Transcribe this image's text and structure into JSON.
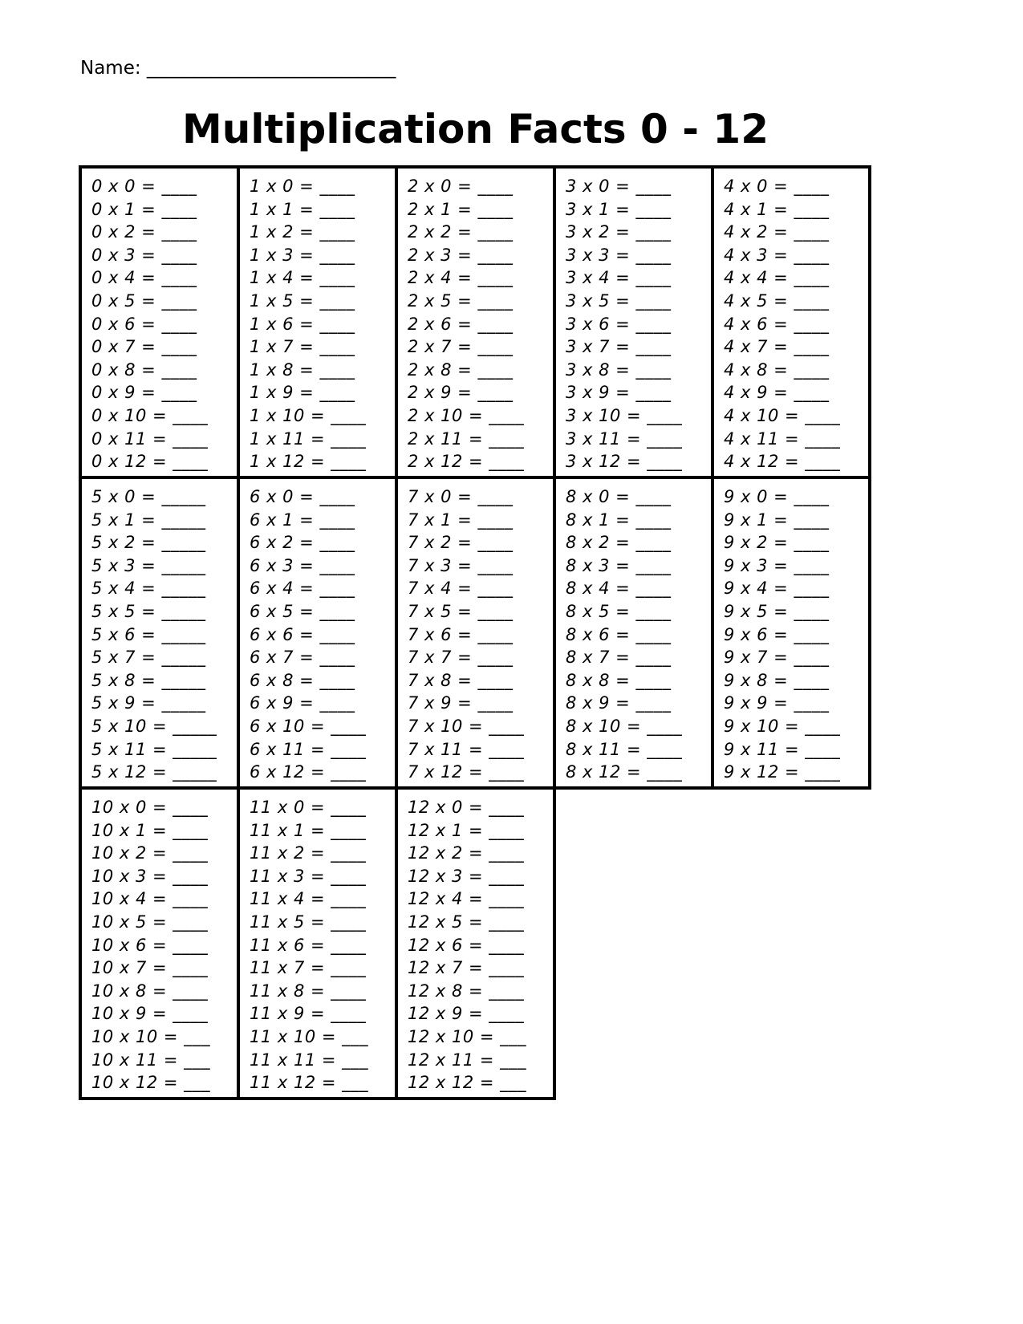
{
  "name_label": "Name: ___________________________",
  "title": "Multiplication Facts 0 - 12",
  "blocks": [
    {
      "problems": [
        "0 x 0 = ____",
        "0 x 1 = ____",
        "0 x 2 = ____",
        "0 x 3 = ____",
        "0 x 4 = ____",
        "0 x 5 = ____",
        "0 x 6 = ____",
        "0 x 7 = ____",
        "0 x 8 = ____",
        "0 x 9 = ____",
        "0 x 10 = ____",
        "0 x 11 = ____",
        "0 x 12 = ____"
      ]
    },
    {
      "problems": [
        "1 x 0 = ____",
        "1 x 1 = ____",
        "1 x 2 = ____",
        "1 x 3 = ____",
        "1 x 4 = ____",
        "1 x 5 = ____",
        "1 x 6 = ____",
        "1 x 7 = ____",
        "1 x 8 = ____",
        "1 x 9 = ____",
        "1 x 10 = ____",
        "1 x 11 = ____",
        "1 x 12 = ____"
      ]
    },
    {
      "problems": [
        "2 x 0 = ____",
        "2 x 1 = ____",
        "2 x 2 = ____",
        "2 x 3 = ____",
        "2 x 4 = ____",
        "2 x 5 = ____",
        "2 x 6 = ____",
        "2 x 7 = ____",
        "2 x 8 = ____",
        "2 x 9 = ____",
        "2 x 10 = ____",
        "2 x 11 = ____",
        "2 x 12 = ____"
      ]
    },
    {
      "problems": [
        "3 x 0 = ____",
        "3 x 1 = ____",
        "3 x 2 = ____",
        "3 x 3 = ____",
        "3 x 4 = ____",
        "3 x 5 = ____",
        "3 x 6 = ____",
        "3 x 7 = ____",
        "3 x 8 = ____",
        "3 x 9 = ____",
        "3 x 10 = ____",
        "3 x 11 = ____",
        "3 x 12 = ____"
      ]
    },
    {
      "problems": [
        "4 x 0 = ____",
        "4 x 1 = ____",
        "4 x 2 = ____",
        "4 x 3 = ____",
        "4 x 4 = ____",
        "4 x 5 = ____",
        "4 x 6 = ____",
        "4 x 7 = ____",
        "4 x 8 = ____",
        "4 x 9 = ____",
        "4 x 10 = ____",
        "4 x 11 = ____",
        "4 x 12 = ____"
      ]
    },
    {
      "problems": [
        "5 x 0 = _____",
        "5 x 1 = _____",
        "5 x 2 = _____",
        "5 x 3 = _____",
        "5 x 4 = _____",
        "5 x 5 = _____",
        "5 x 6 = _____",
        "5 x 7 = _____",
        "5 x 8 = _____",
        "5 x 9 = _____",
        "5 x 10 = _____",
        "5 x 11 = _____",
        "5 x 12 = _____"
      ]
    },
    {
      "problems": [
        "6 x 0 = ____",
        "6 x 1 = ____",
        "6 x 2 = ____",
        "6 x 3 = ____",
        "6 x 4 = ____",
        "6 x 5 = ____",
        "6 x 6 = ____",
        "6 x 7 = ____",
        "6 x 8 = ____",
        "6 x 9 = ____",
        "6 x 10 = ____",
        "6 x 11 = ____",
        "6 x 12 = ____"
      ]
    },
    {
      "problems": [
        "7 x 0 = ____",
        "7 x 1 = ____",
        "7 x 2 = ____",
        "7 x 3 = ____",
        "7 x 4 = ____",
        "7 x 5 = ____",
        "7 x 6 = ____",
        "7 x 7 = ____",
        "7 x 8 = ____",
        "7 x 9 = ____",
        "7 x 10 = ____",
        "7 x 11 = ____",
        "7 x 12 = ____"
      ]
    },
    {
      "problems": [
        "8 x 0 = ____",
        "8 x 1 = ____",
        "8 x 2 = ____",
        "8 x 3 = ____",
        "8 x 4 = ____",
        "8 x 5 = ____",
        "8 x 6 = ____",
        "8 x 7 = ____",
        "8 x 8 = ____",
        "8 x 9 = ____",
        "8 x 10 = ____",
        "8 x 11 = ____",
        "8 x 12 = ____"
      ]
    },
    {
      "problems": [
        "9 x 0 = ____",
        "9 x 1 = ____",
        "9 x 2 = ____",
        "9 x 3 = ____",
        "9 x 4 = ____",
        "9 x 5 = ____",
        "9 x 6 = ____",
        "9 x 7 = ____",
        "9 x 8 = ____",
        "9 x 9 = ____",
        "9 x 10 = ____",
        "9 x 11 = ____",
        "9 x 12 = ____"
      ]
    },
    {
      "problems": [
        "10 x 0 = ____",
        "10 x 1 = ____",
        "10 x 2 = ____",
        "10 x 3 = ____",
        "10 x 4 = ____",
        "10 x 5 = ____",
        "10 x 6 = ____",
        "10 x 7 = ____",
        "10 x 8 = ____",
        "10 x 9 = ____",
        "10 x 10 = ___",
        "10 x 11 = ___",
        "10 x 12 = ___"
      ]
    },
    {
      "problems": [
        "11 x 0 = ____",
        "11 x 1 = ____",
        "11 x 2 = ____",
        "11 x 3 = ____",
        "11 x 4 = ____",
        "11 x 5 = ____",
        "11 x 6 = ____",
        "11 x 7 = ____",
        "11 x 8 = ____",
        "11 x 9 = ____",
        "11 x 10 = ___",
        "11 x 11 = ___",
        "11 x 12 = ___"
      ]
    },
    {
      "problems": [
        "12 x 0 = ____",
        "12 x 1 = ____",
        "12 x 2 = ____",
        "12 x 3 = ____",
        "12 x 4 = ____",
        "12 x 5 = ____",
        "12 x 6 = ____",
        "12 x 7 = ____",
        "12 x 8 = ____",
        "12 x 9 = ____",
        "12 x 10 = ___",
        "12 x 11 = ___",
        "12 x 12 = ___"
      ]
    }
  ]
}
